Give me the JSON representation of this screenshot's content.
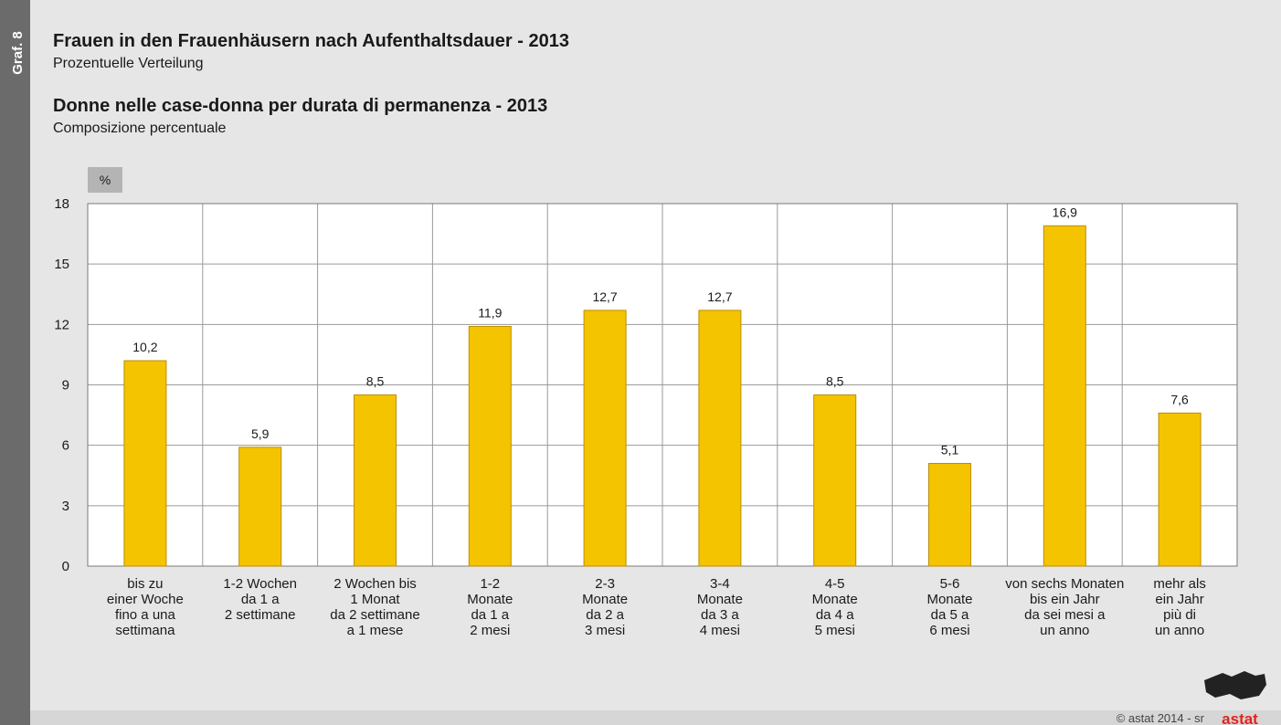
{
  "figure_label": "Graf. 8",
  "credit": "© astat 2014 - sr",
  "logo": "astat",
  "chart_data": {
    "type": "bar",
    "title": "Frauen in den Frauenhäusern nach Aufenthaltsdauer - 2013",
    "subtitle": "Prozentuelle Verteilung",
    "title_2": "Donne nelle case-donna per durata di permanenza - 2013",
    "subtitle_2": "Composizione percentuale",
    "y_label": "%",
    "categories": [
      [
        "bis zu",
        "einer Woche",
        "fino a una",
        "settimana"
      ],
      [
        "1-2 Wochen",
        "da 1 a",
        "2 settimane"
      ],
      [
        "2 Wochen bis",
        "1 Monat",
        "da 2 settimane",
        "a 1 mese"
      ],
      [
        "1-2",
        "Monate",
        "da 1 a",
        "2 mesi"
      ],
      [
        "2-3",
        "Monate",
        "da 2 a",
        "3 mesi"
      ],
      [
        "3-4",
        "Monate",
        "da 3 a",
        "4 mesi"
      ],
      [
        "4-5",
        "Monate",
        "da 4 a",
        "5 mesi"
      ],
      [
        "5-6",
        "Monate",
        "da 5 a",
        "6 mesi"
      ],
      [
        "von sechs Monaten",
        "bis ein Jahr",
        "da sei mesi a",
        "un anno"
      ],
      [
        "mehr als",
        "ein Jahr",
        "più di",
        "un anno"
      ]
    ],
    "values": [
      10.2,
      5.9,
      8.5,
      11.9,
      12.7,
      12.7,
      8.5,
      5.1,
      16.9,
      7.6
    ],
    "value_labels": [
      "10,2",
      "5,9",
      "8,5",
      "11,9",
      "12,7",
      "12,7",
      "8,5",
      "5,1",
      "16,9",
      "7,6"
    ],
    "color": "#f5c400",
    "ylim": [
      0,
      18
    ],
    "yticks": [
      0,
      3,
      6,
      9,
      12,
      15,
      18
    ],
    "grid": true
  }
}
